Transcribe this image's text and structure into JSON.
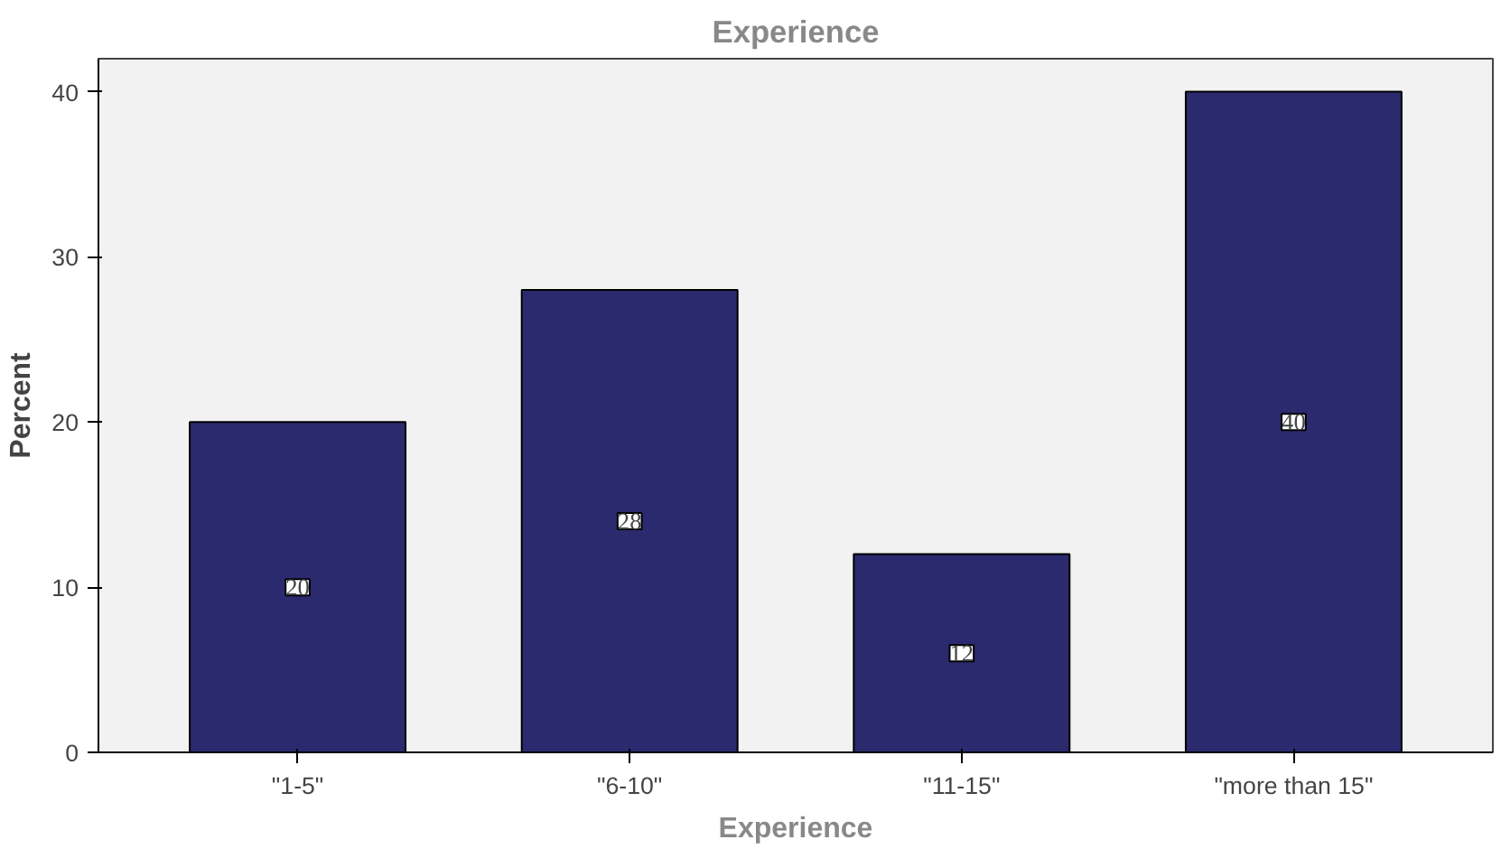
{
  "chart_data": {
    "type": "bar",
    "title": "Experience",
    "xlabel": "Experience",
    "ylabel": "Percent",
    "categories": [
      "\"1-5\"",
      "\"6-10\"",
      "\"11-15\"",
      "\"more than 15\""
    ],
    "values": [
      20,
      28,
      12,
      40
    ],
    "color": "#2b2a6e",
    "ylim": [
      0,
      42
    ],
    "yticks": [
      0,
      10,
      20,
      30,
      40
    ],
    "grid": false,
    "data_labels": true
  }
}
